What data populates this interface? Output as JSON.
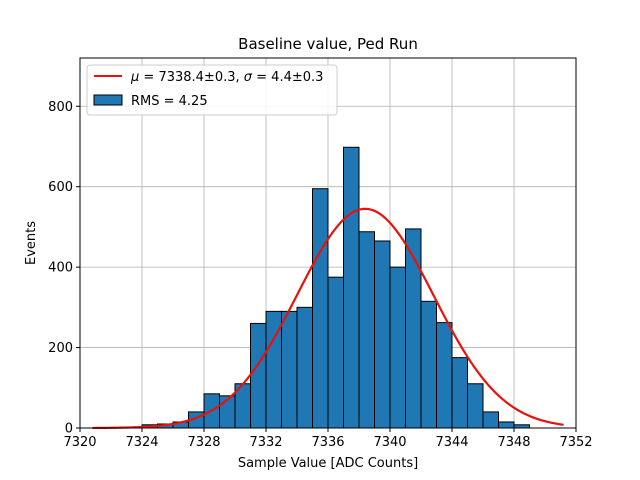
{
  "chart_data": {
    "type": "bar",
    "title": "Baseline value, Ped Run",
    "xlabel": "Sample Value [ADC Counts]",
    "ylabel": "Events",
    "xlim": [
      7320,
      7352
    ],
    "ylim": [
      0,
      920
    ],
    "xticks": [
      7320,
      7324,
      7328,
      7332,
      7336,
      7340,
      7344,
      7348,
      7352
    ],
    "yticks": [
      0,
      200,
      400,
      600,
      800
    ],
    "grid": true,
    "legend_position": "top-left",
    "bin_width": 1,
    "bar_color": "#1f77b4",
    "fit_color": "#e8120c",
    "histogram": {
      "name": "RMS = 4.25",
      "bins": [
        {
          "x": 7324,
          "value": 8
        },
        {
          "x": 7325,
          "value": 10
        },
        {
          "x": 7326,
          "value": 15
        },
        {
          "x": 7327,
          "value": 40
        },
        {
          "x": 7328,
          "value": 85
        },
        {
          "x": 7329,
          "value": 80
        },
        {
          "x": 7330,
          "value": 110
        },
        {
          "x": 7331,
          "value": 260
        },
        {
          "x": 7332,
          "value": 290
        },
        {
          "x": 7333,
          "value": 290
        },
        {
          "x": 7334,
          "value": 300
        },
        {
          "x": 7335,
          "value": 595
        },
        {
          "x": 7336,
          "value": 375
        },
        {
          "x": 7337,
          "value": 698
        },
        {
          "x": 7338,
          "value": 488
        },
        {
          "x": 7339,
          "value": 465
        },
        {
          "x": 7340,
          "value": 400
        },
        {
          "x": 7341,
          "value": 495
        },
        {
          "x": 7342,
          "value": 315
        },
        {
          "x": 7343,
          "value": 262
        },
        {
          "x": 7344,
          "value": 175
        },
        {
          "x": 7345,
          "value": 110
        },
        {
          "x": 7346,
          "value": 40
        },
        {
          "x": 7347,
          "value": 15
        },
        {
          "x": 7348,
          "value": 8
        }
      ]
    },
    "fit": {
      "name": "$\\mu = $7338.4±0.3, $\\sigma = $4.4±0.3",
      "legend_parts": [
        {
          "text": "μ",
          "italic": true
        },
        {
          "text": " = 7338.4±0.3, ",
          "italic": false
        },
        {
          "text": "σ",
          "italic": true
        },
        {
          "text": " = 4.4±0.3",
          "italic": false
        }
      ],
      "mu": 7338.4,
      "sigma": 4.4,
      "amplitude": 545,
      "x_range": [
        7320.8,
        7351.2
      ]
    }
  }
}
